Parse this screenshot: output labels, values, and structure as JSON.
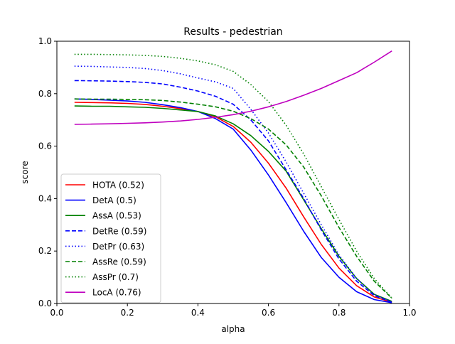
{
  "chart_data": {
    "type": "line",
    "title": "Results - pedestrian",
    "xlabel": "alpha",
    "ylabel": "score",
    "xlim": [
      0.0,
      1.0
    ],
    "ylim": [
      0.0,
      1.0
    ],
    "xticks": [
      "0.0",
      "0.2",
      "0.4",
      "0.6",
      "0.8",
      "1.0"
    ],
    "yticks": [
      "0.0",
      "0.2",
      "0.4",
      "0.6",
      "0.8",
      "1.0"
    ],
    "grid": false,
    "legend_position": "lower-left",
    "x": [
      0.05,
      0.1,
      0.15,
      0.2,
      0.25,
      0.3,
      0.35,
      0.4,
      0.45,
      0.5,
      0.55,
      0.6,
      0.65,
      0.7,
      0.75,
      0.8,
      0.85,
      0.9,
      0.95
    ],
    "series": [
      {
        "name": "HOTA (0.52)",
        "color": "#ff0000",
        "dash": "solid",
        "values": [
          0.767,
          0.766,
          0.765,
          0.763,
          0.759,
          0.752,
          0.743,
          0.732,
          0.712,
          0.675,
          0.615,
          0.535,
          0.44,
          0.33,
          0.225,
          0.135,
          0.068,
          0.025,
          0.005
        ]
      },
      {
        "name": "DetA (0.5)",
        "color": "#0000ff",
        "dash": "solid",
        "values": [
          0.78,
          0.778,
          0.775,
          0.772,
          0.767,
          0.758,
          0.747,
          0.732,
          0.705,
          0.665,
          0.585,
          0.49,
          0.385,
          0.275,
          0.175,
          0.1,
          0.045,
          0.015,
          0.003
        ]
      },
      {
        "name": "AssA (0.53)",
        "color": "#008000",
        "dash": "solid",
        "values": [
          0.753,
          0.752,
          0.752,
          0.75,
          0.748,
          0.744,
          0.738,
          0.732,
          0.715,
          0.685,
          0.64,
          0.58,
          0.505,
          0.395,
          0.285,
          0.18,
          0.095,
          0.035,
          0.008
        ]
      },
      {
        "name": "DetRe (0.59)",
        "color": "#0000ff",
        "dash": "dashed",
        "values": [
          0.85,
          0.849,
          0.848,
          0.846,
          0.843,
          0.837,
          0.825,
          0.81,
          0.79,
          0.76,
          0.7,
          0.62,
          0.51,
          0.4,
          0.28,
          0.17,
          0.085,
          0.03,
          0.005
        ]
      },
      {
        "name": "DetPr (0.63)",
        "color": "#0000ff",
        "dash": "dotted",
        "values": [
          0.905,
          0.904,
          0.902,
          0.9,
          0.896,
          0.888,
          0.876,
          0.86,
          0.845,
          0.82,
          0.74,
          0.65,
          0.54,
          0.42,
          0.3,
          0.185,
          0.095,
          0.035,
          0.006
        ]
      },
      {
        "name": "AssRe (0.59)",
        "color": "#008000",
        "dash": "dashed",
        "values": [
          0.78,
          0.779,
          0.779,
          0.778,
          0.777,
          0.774,
          0.768,
          0.76,
          0.75,
          0.733,
          0.705,
          0.665,
          0.605,
          0.52,
          0.41,
          0.29,
          0.18,
          0.085,
          0.02
        ]
      },
      {
        "name": "AssPr (0.7)",
        "color": "#008000",
        "dash": "dotted",
        "values": [
          0.95,
          0.95,
          0.949,
          0.948,
          0.946,
          0.942,
          0.935,
          0.925,
          0.91,
          0.885,
          0.835,
          0.77,
          0.68,
          0.57,
          0.445,
          0.32,
          0.2,
          0.095,
          0.02
        ]
      },
      {
        "name": "LocA (0.76)",
        "color": "#bf00bf",
        "dash": "solid",
        "values": [
          0.683,
          0.684,
          0.685,
          0.687,
          0.689,
          0.692,
          0.696,
          0.702,
          0.71,
          0.72,
          0.733,
          0.75,
          0.77,
          0.794,
          0.82,
          0.85,
          0.88,
          0.92,
          0.963
        ]
      }
    ]
  }
}
